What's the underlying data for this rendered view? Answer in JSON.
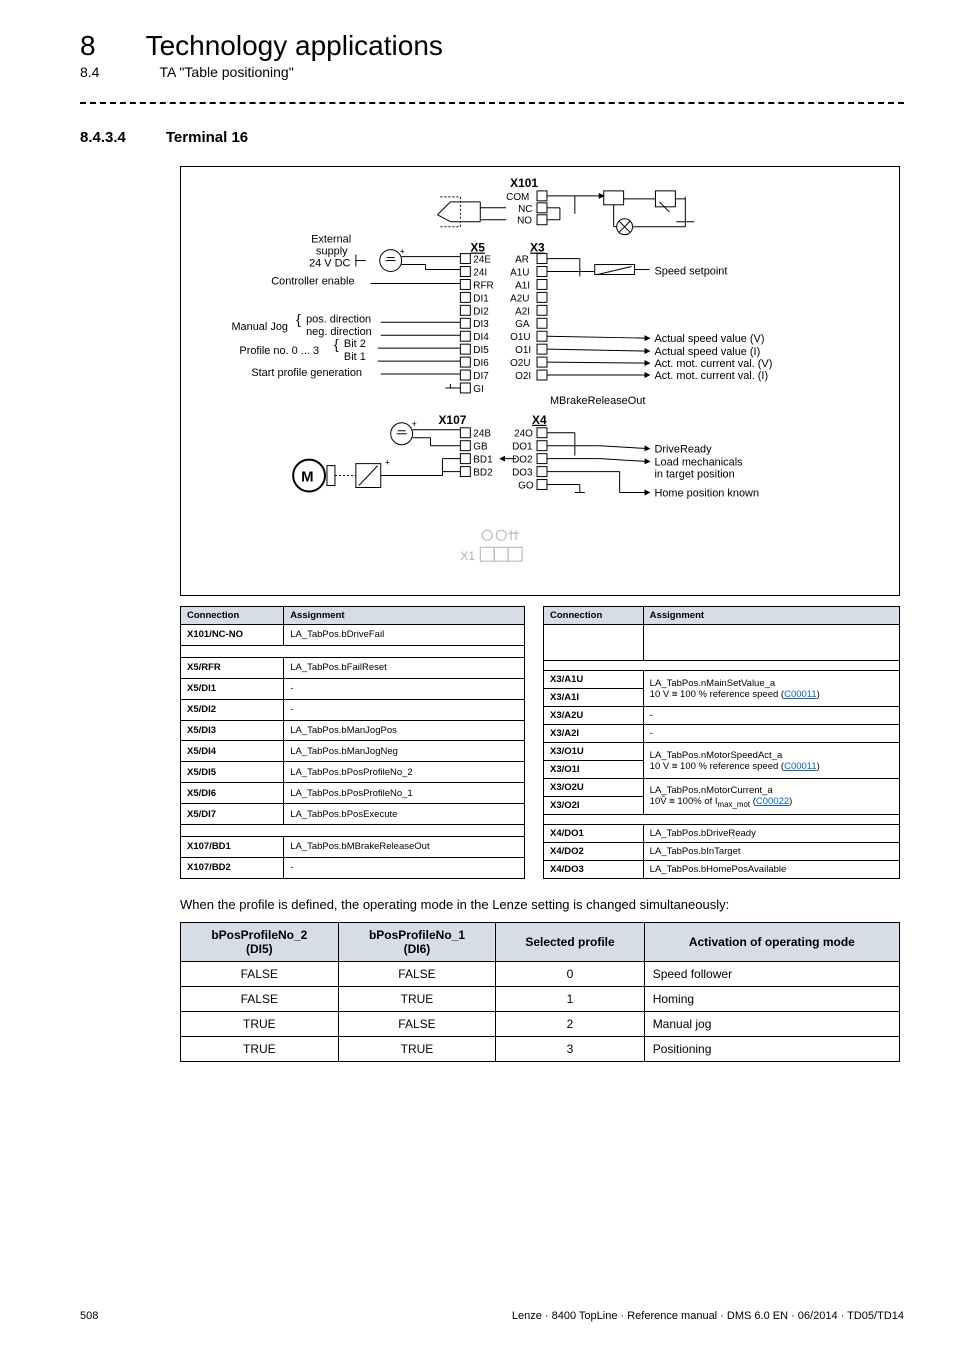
{
  "header": {
    "chapter_num": "8",
    "chapter_title": "Technology applications",
    "sub_num": "8.4",
    "sub_title": "TA \"Table positioning\""
  },
  "section": {
    "num": "8.4.3.4",
    "title": "Terminal 16"
  },
  "diagram": {
    "labels": {
      "x101": "X101",
      "com": "COM",
      "nc": "NC",
      "no": "NO",
      "external": "External",
      "supply": "supply",
      "vdc": "24 V DC",
      "controller_enable": "Controller enable",
      "manual_jog": "Manual Jog",
      "pos_dir": "pos. direction",
      "neg_dir": "neg. direction",
      "profile_no": "Profile no. 0 ... 3",
      "bit2": "Bit 2",
      "bit1": "Bit 1",
      "start_profile": "Start profile generation",
      "x5": "X5",
      "p24e": "24E",
      "p24i": "24I",
      "rfr": "RFR",
      "di1": "DI1",
      "di2": "DI2",
      "di3": "DI3",
      "di4": "DI4",
      "di5": "DI5",
      "di6": "DI6",
      "di7": "DI7",
      "gi": "GI",
      "x3": "X3",
      "ar": "AR",
      "a1u": "A1U",
      "a1i": "A1I",
      "a2u": "A2U",
      "a2i": "A2I",
      "ga": "GA",
      "o1u": "O1U",
      "o1i": "O1I",
      "o2u": "O2U",
      "o2i": "O2I",
      "speed_setpoint": "Speed setpoint",
      "asv_v": "Actual speed value (V)",
      "asv_i": "Actual speed value (I)",
      "amc_v": "Act. mot. current val. (V)",
      "amc_i": "Act. mot. current val. (I)",
      "mbrake": "MBrakeReleaseOut",
      "x107": "X107",
      "p24b": "24B",
      "gb": "GB",
      "bd1": "BD1",
      "bd2": "BD2",
      "x4": "X4",
      "p24o": "24O",
      "do1": "DO1",
      "do2": "DO2",
      "do3": "DO3",
      "go": "GO",
      "drive_ready": "DriveReady",
      "load_mech": "Load mechanicals",
      "in_target": "in target position",
      "home_known": "Home position known",
      "m_label": "M",
      "x1": "X1"
    }
  },
  "left_table": {
    "headers": [
      "Connection",
      "Assignment"
    ],
    "rows": [
      {
        "c": "X101/NC-NO",
        "a": "LA_TabPos.bDriveFail"
      },
      {
        "spacer": true
      },
      {
        "c": "X5/RFR",
        "a": "LA_TabPos.bFailReset"
      },
      {
        "c": "X5/DI1",
        "a": "-"
      },
      {
        "c": "X5/DI2",
        "a": "-"
      },
      {
        "c": "X5/DI3",
        "a": "LA_TabPos.bManJogPos"
      },
      {
        "c": "X5/DI4",
        "a": "LA_TabPos.bManJogNeg"
      },
      {
        "c": "X5/DI5",
        "a": "LA_TabPos.bPosProfileNo_2"
      },
      {
        "c": "X5/DI6",
        "a": "LA_TabPos.bPosProfileNo_1"
      },
      {
        "c": "X5/DI7",
        "a": "LA_TabPos.bPosExecute"
      },
      {
        "spacer": true
      },
      {
        "c": "X107/BD1",
        "a": "LA_TabPos.bMBrakeReleaseOut"
      },
      {
        "c": "X107/BD2",
        "a": "-"
      }
    ]
  },
  "right_table": {
    "headers": [
      "Connection",
      "Assignment"
    ],
    "rows": [
      {
        "c": "",
        "a": "",
        "blank": true
      },
      {
        "spacer": true
      },
      {
        "c": "X3/A1U",
        "a": "LA_TabPos.nMainSetValue_a",
        "rowspan": 2,
        "sub": "10 V ≡ 100 % reference speed ",
        "link": "C00011"
      },
      {
        "c": "X3/A1I"
      },
      {
        "c": "X3/A2U",
        "a": "-"
      },
      {
        "c": "X3/A2I",
        "a": "-"
      },
      {
        "c": "X3/O1U",
        "a": "LA_TabPos.nMotorSpeedAct_a",
        "rowspan": 2,
        "sub": "10 V ≡ 100 % reference speed ",
        "link": "C00011"
      },
      {
        "c": "X3/O1I"
      },
      {
        "c": "X3/O2U",
        "a": "LA_TabPos.nMotorCurrent_a",
        "rowspan": 2,
        "sub_html": "10V̂ ≡ 100% of I<sub>max_mot</sub> ",
        "link": "C00022"
      },
      {
        "c": "X3/O2I"
      },
      {
        "spacer": true
      },
      {
        "c": "X4/DO1",
        "a": "LA_TabPos.bDriveReady"
      },
      {
        "c": "X4/DO2",
        "a": "LA_TabPos.bInTarget"
      },
      {
        "c": "X4/DO3",
        "a": "LA_TabPos.bHomePosAvailable"
      }
    ]
  },
  "note": "When the profile is defined, the operating mode in the Lenze setting is changed simultaneously:",
  "profile_table": {
    "headers": [
      "bPosProfileNo_2\n(DI5)",
      "bPosProfileNo_1\n(DI6)",
      "Selected profile",
      "Activation of operating mode"
    ],
    "rows": [
      [
        "FALSE",
        "FALSE",
        "0",
        "Speed follower"
      ],
      [
        "FALSE",
        "TRUE",
        "1",
        "Homing"
      ],
      [
        "TRUE",
        "FALSE",
        "2",
        "Manual jog"
      ],
      [
        "TRUE",
        "TRUE",
        "3",
        "Positioning"
      ]
    ]
  },
  "footer": {
    "page": "508",
    "info": "Lenze · 8400 TopLine · Reference manual · DMS 6.0 EN · 06/2014 · TD05/TD14"
  }
}
